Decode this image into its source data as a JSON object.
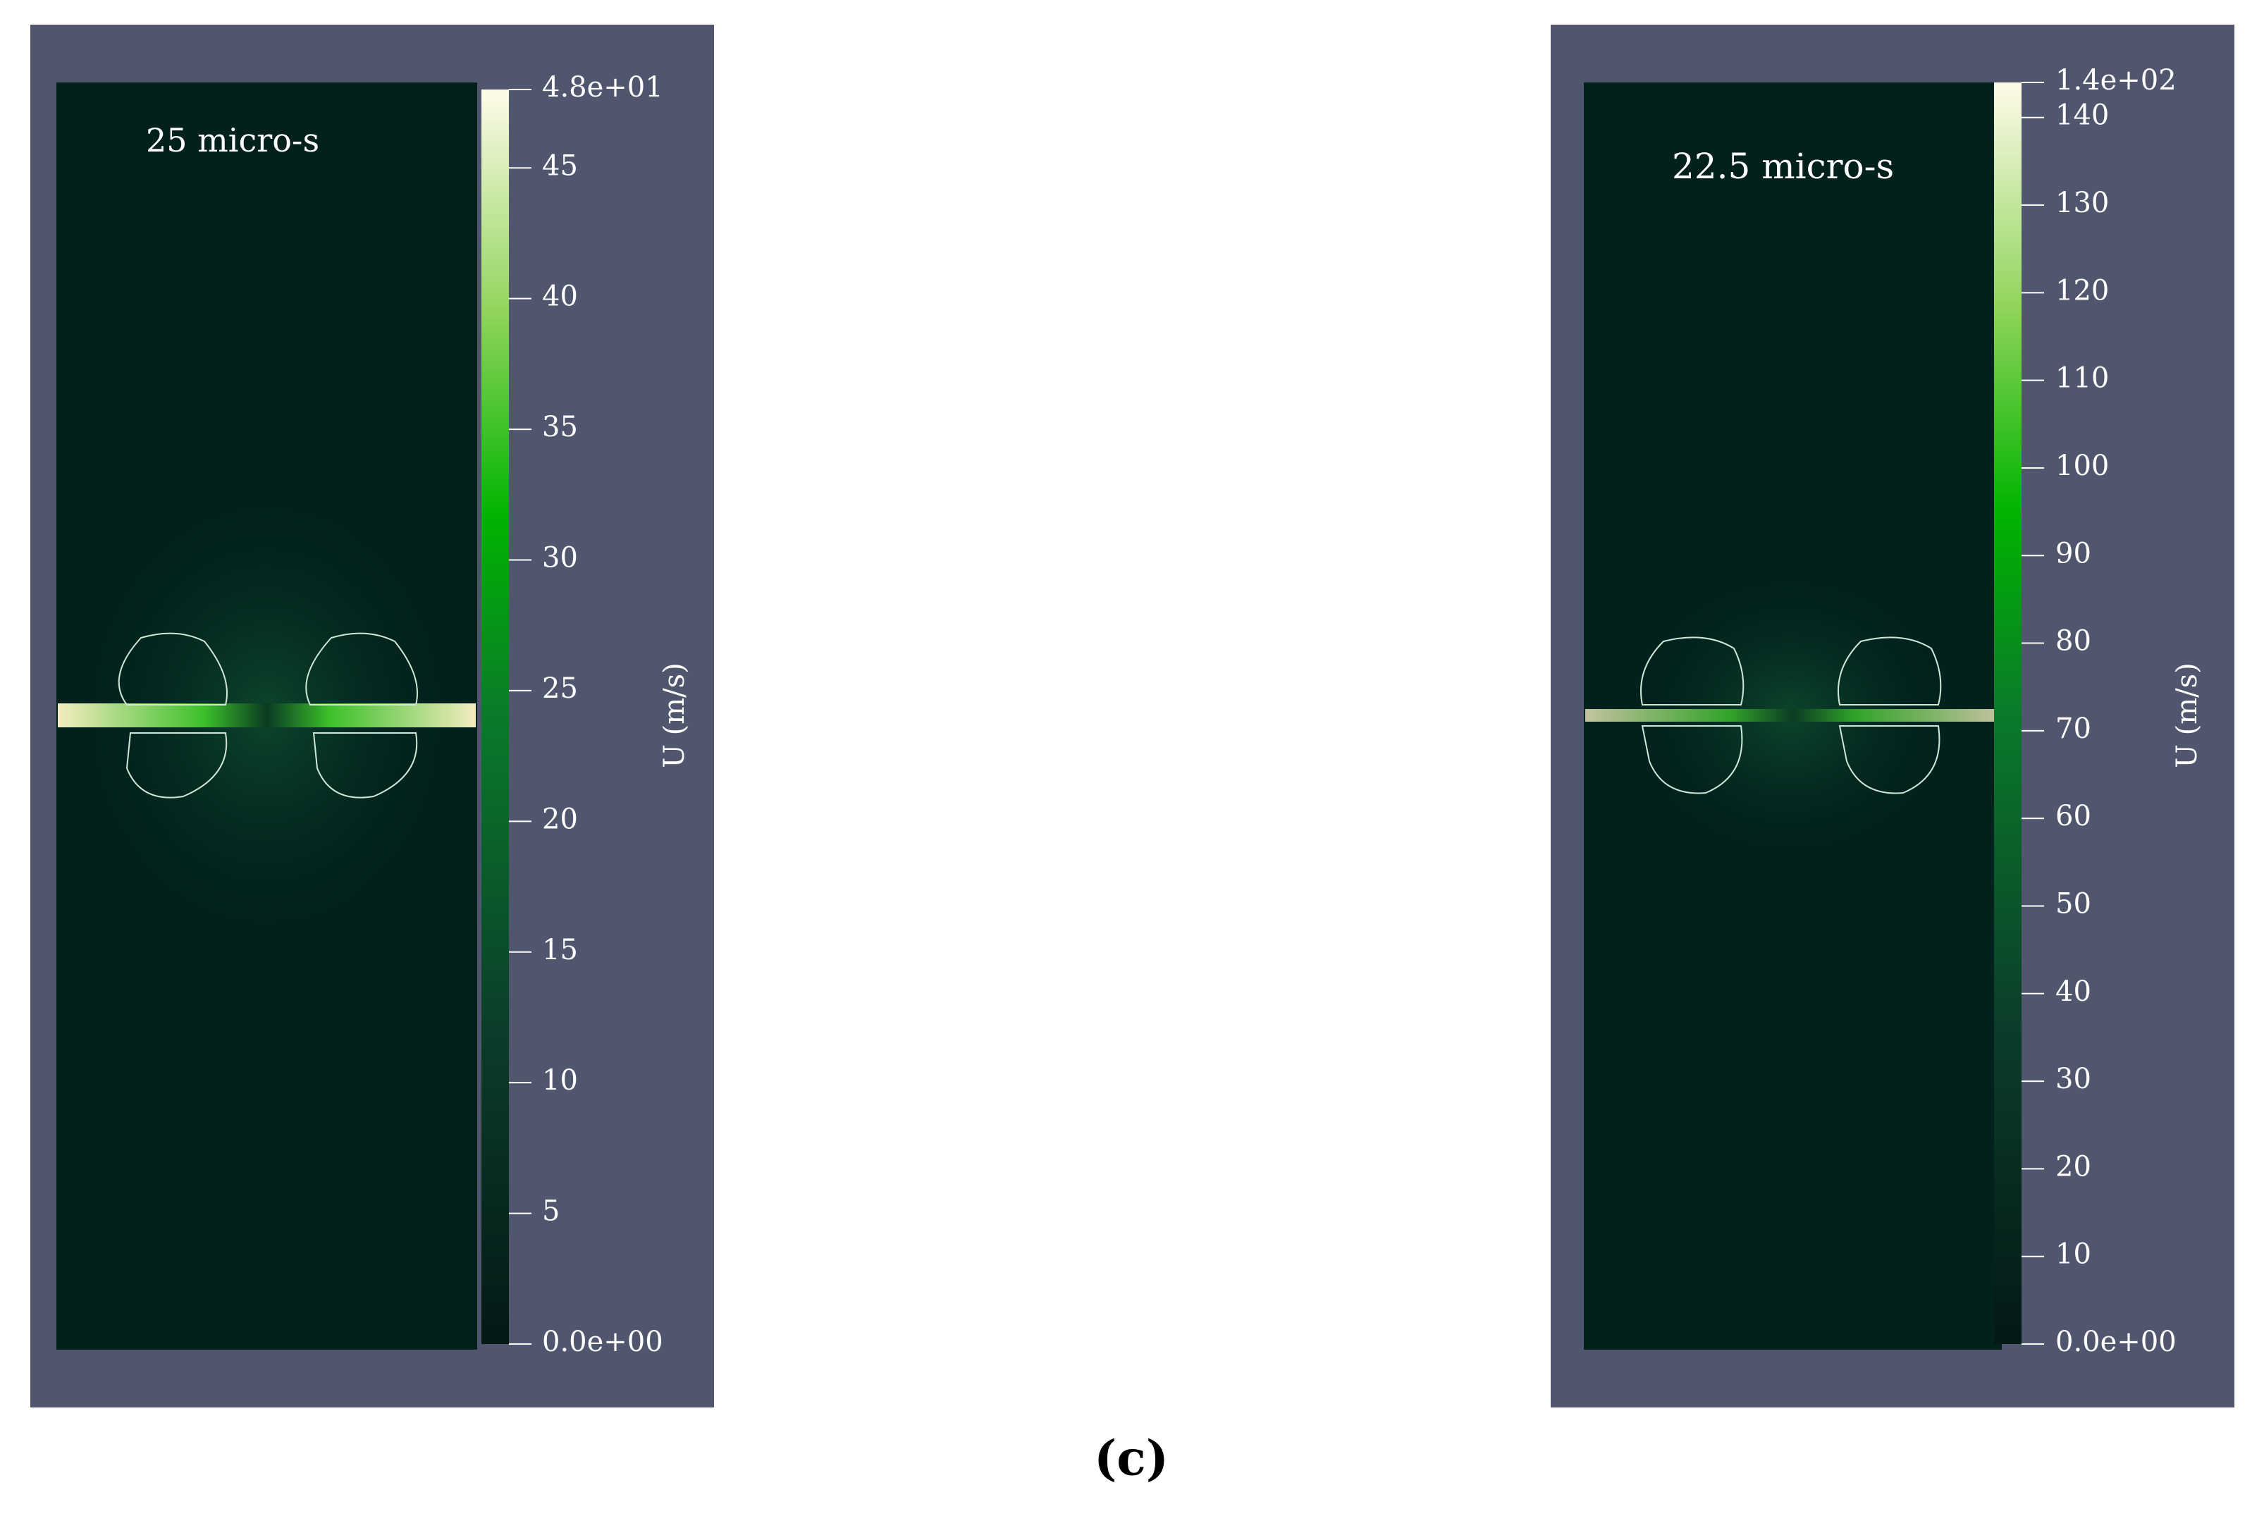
{
  "panels": [
    {
      "time_label": "25 micro-s",
      "colorbar_label": "U (m/s)",
      "lim": [
        0,
        48
      ],
      "ticks": [
        {
          "value": 0,
          "label": "0.0e+00"
        },
        5,
        10,
        15,
        20,
        25,
        30,
        35,
        40,
        45,
        {
          "value": 48,
          "label": "4.8e+01"
        }
      ]
    },
    {
      "time_label": "22.5 micro-s",
      "colorbar_label": "U (m/s)",
      "lim": [
        0,
        144
      ],
      "ticks": [
        {
          "value": 0,
          "label": "0.0e+00"
        },
        10,
        20,
        30,
        40,
        50,
        60,
        70,
        80,
        90,
        100,
        110,
        120,
        130,
        140,
        {
          "value": 144,
          "label": "1.4e+02"
        }
      ]
    }
  ],
  "caption": "(c)"
}
